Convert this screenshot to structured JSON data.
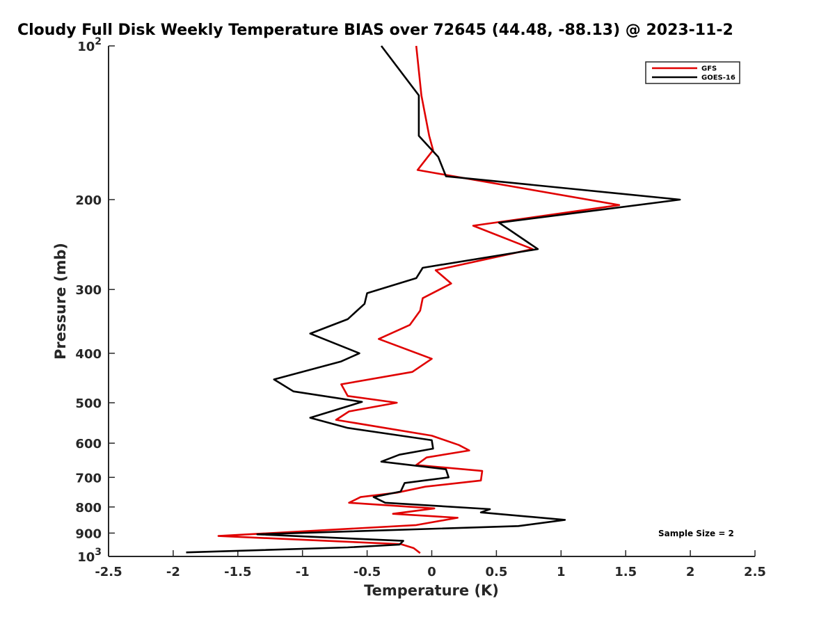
{
  "chart_data": {
    "type": "line",
    "title": "Cloudy Full Disk Weekly Temperature BIAS over 72645 (44.48, -88.13) @ 2023-11-2",
    "xlabel": "Temperature (K)",
    "ylabel": "Pressure (mb)",
    "xlim": [
      -2.5,
      2.5
    ],
    "ylim": [
      100,
      1000
    ],
    "y_scale": "log",
    "y_reversed": true,
    "grid": false,
    "legend_position": "top-right",
    "x_ticks": [
      {
        "value": -2.5,
        "label": "-2.5"
      },
      {
        "value": -2,
        "label": "-2"
      },
      {
        "value": -1.5,
        "label": "-1.5"
      },
      {
        "value": -1,
        "label": "-1"
      },
      {
        "value": -0.5,
        "label": "-0.5"
      },
      {
        "value": 0,
        "label": "0"
      },
      {
        "value": 0.5,
        "label": "0.5"
      },
      {
        "value": 1,
        "label": "1"
      },
      {
        "value": 1.5,
        "label": "1.5"
      },
      {
        "value": 2,
        "label": "2"
      },
      {
        "value": 2.5,
        "label": "2.5"
      }
    ],
    "y_ticks": [
      {
        "value": 100,
        "label": "10",
        "sup": "2"
      },
      {
        "value": 200,
        "label": "200"
      },
      {
        "value": 300,
        "label": "300"
      },
      {
        "value": 400,
        "label": "400"
      },
      {
        "value": 500,
        "label": "500"
      },
      {
        "value": 600,
        "label": "600"
      },
      {
        "value": 700,
        "label": "700"
      },
      {
        "value": 800,
        "label": "800"
      },
      {
        "value": 900,
        "label": "900"
      },
      {
        "value": 1000,
        "label": "10",
        "sup": "3"
      }
    ],
    "series": [
      {
        "name": "GFS",
        "color": "#e00000",
        "points": [
          [
            -0.12,
            100
          ],
          [
            -0.08,
            125
          ],
          [
            -0.02,
            150
          ],
          [
            0.01,
            160
          ],
          [
            -0.11,
            175
          ],
          [
            1.45,
            205
          ],
          [
            0.32,
            225
          ],
          [
            0.78,
            250
          ],
          [
            0.03,
            275
          ],
          [
            0.15,
            292
          ],
          [
            -0.07,
            312
          ],
          [
            -0.09,
            330
          ],
          [
            -0.17,
            352
          ],
          [
            -0.41,
            375
          ],
          [
            0.0,
            410
          ],
          [
            -0.15,
            435
          ],
          [
            -0.7,
            460
          ],
          [
            -0.65,
            485
          ],
          [
            -0.27,
            500
          ],
          [
            -0.64,
            520
          ],
          [
            -0.74,
            540
          ],
          [
            0.0,
            580
          ],
          [
            0.21,
            605
          ],
          [
            0.29,
            620
          ],
          [
            -0.04,
            640
          ],
          [
            -0.12,
            662
          ],
          [
            0.39,
            680
          ],
          [
            0.38,
            710
          ],
          [
            -0.05,
            730
          ],
          [
            -0.27,
            750
          ],
          [
            -0.55,
            765
          ],
          [
            -0.64,
            785
          ],
          [
            0.02,
            805
          ],
          [
            -0.3,
            825
          ],
          [
            0.2,
            840
          ],
          [
            -0.12,
            868
          ],
          [
            -1.65,
            912
          ],
          [
            -0.24,
            946
          ],
          [
            -0.14,
            963
          ],
          [
            -0.09,
            985
          ]
        ]
      },
      {
        "name": "GOES-16",
        "color": "#000000",
        "points": [
          [
            -0.39,
            100
          ],
          [
            -0.1,
            125
          ],
          [
            -0.1,
            150
          ],
          [
            0.05,
            165
          ],
          [
            0.11,
            180
          ],
          [
            1.92,
            200
          ],
          [
            0.52,
            222
          ],
          [
            0.82,
            250
          ],
          [
            -0.07,
            272
          ],
          [
            -0.12,
            285
          ],
          [
            -0.5,
            305
          ],
          [
            -0.52,
            320
          ],
          [
            -0.65,
            343
          ],
          [
            -0.94,
            366
          ],
          [
            -0.56,
            400
          ],
          [
            -0.7,
            415
          ],
          [
            -1.22,
            450
          ],
          [
            -1.07,
            475
          ],
          [
            -0.54,
            498
          ],
          [
            -0.94,
            535
          ],
          [
            -0.65,
            560
          ],
          [
            0.0,
            592
          ],
          [
            0.01,
            615
          ],
          [
            -0.25,
            632
          ],
          [
            -0.39,
            652
          ],
          [
            0.11,
            675
          ],
          [
            0.13,
            700
          ],
          [
            -0.21,
            718
          ],
          [
            -0.24,
            746
          ],
          [
            -0.45,
            765
          ],
          [
            -0.36,
            785
          ],
          [
            0.45,
            808
          ],
          [
            0.38,
            820
          ],
          [
            1.03,
            848
          ],
          [
            0.67,
            872
          ],
          [
            -1.35,
            905
          ],
          [
            -0.22,
            932
          ],
          [
            -0.25,
            948
          ],
          [
            -0.65,
            960
          ],
          [
            -1.9,
            982
          ]
        ]
      }
    ],
    "annotations": [
      "Sample Size = 2"
    ]
  }
}
